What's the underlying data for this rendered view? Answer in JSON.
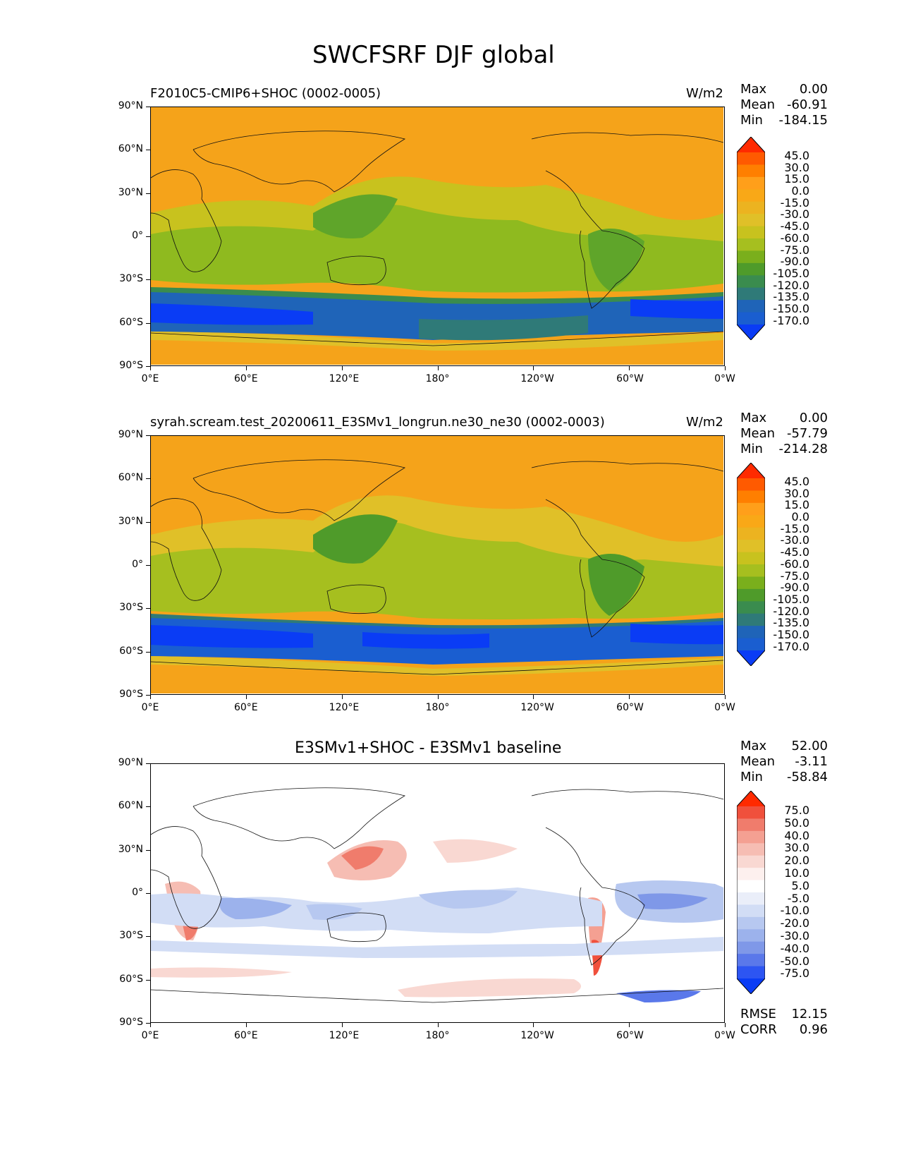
{
  "figure": {
    "title": "SWCFSRF DJF global"
  },
  "axes": {
    "x_ticks": [
      "0°E",
      "60°E",
      "120°E",
      "180°",
      "120°W",
      "60°W",
      "0°W"
    ],
    "y_ticks": [
      "90°N",
      "60°N",
      "30°N",
      "0°",
      "30°S",
      "60°S",
      "90°S"
    ]
  },
  "panels": [
    {
      "title_left": "F2010C5-CMIP6+SHOC (0002-0005)",
      "units": "W/m2",
      "stats": {
        "max_label": "Max",
        "max": "0.00",
        "mean_label": "Mean",
        "mean": "-60.91",
        "min_label": "Min",
        "min": "-184.15"
      },
      "colorbar_labels": [
        "45.0",
        "30.0",
        "15.0",
        "0.0",
        "-15.0",
        "-30.0",
        "-45.0",
        "-60.0",
        "-75.0",
        "-90.0",
        "-105.0",
        "-120.0",
        "-135.0",
        "-150.0",
        "-170.0"
      ]
    },
    {
      "title_left": "syrah.scream.test_20200611_E3SMv1_longrun.ne30_ne30 (0002-0003)",
      "units": "W/m2",
      "stats": {
        "max_label": "Max",
        "max": "0.00",
        "mean_label": "Mean",
        "mean": "-57.79",
        "min_label": "Min",
        "min": "-214.28"
      },
      "colorbar_labels": [
        "45.0",
        "30.0",
        "15.0",
        "0.0",
        "-15.0",
        "-30.0",
        "-45.0",
        "-60.0",
        "-75.0",
        "-90.0",
        "-105.0",
        "-120.0",
        "-135.0",
        "-150.0",
        "-170.0"
      ]
    },
    {
      "title_center": "E3SMv1+SHOC - E3SMv1 baseline",
      "stats": {
        "max_label": "Max",
        "max": "52.00",
        "mean_label": "Mean",
        "mean": "-3.11",
        "min_label": "Min",
        "min": "-58.84"
      },
      "colorbar_labels": [
        "75.0",
        "50.0",
        "40.0",
        "30.0",
        "20.0",
        "10.0",
        "5.0",
        "-5.0",
        "-10.0",
        "-20.0",
        "-30.0",
        "-40.0",
        "-50.0",
        "-75.0"
      ],
      "footer": {
        "rmse_label": "RMSE",
        "rmse": "12.15",
        "corr_label": "CORR",
        "corr": "0.96"
      }
    }
  ],
  "colors": {
    "field_scale": [
      "#ff2a00",
      "#ff5a00",
      "#ff7f00",
      "#ff9f1a",
      "#f9a817",
      "#ecb320",
      "#e0c028",
      "#c8c21e",
      "#a6bf1f",
      "#7aaf1c",
      "#4f9b2a",
      "#3a8c4e",
      "#2f7a78",
      "#1f64b8",
      "#1a5ed0",
      "#0a3cf5"
    ],
    "diff_scale": [
      "#ff2a00",
      "#f0503c",
      "#f07c6c",
      "#f4a092",
      "#f6bdb3",
      "#f9d8d2",
      "#fdf0ee",
      "#ffffff",
      "#eaeef9",
      "#d2ddf5",
      "#b7c8f0",
      "#9cb2ec",
      "#7f98e8",
      "#5a78ea",
      "#2d55f2",
      "#0a3cf5"
    ],
    "background_field": "#f5a31a",
    "background_diff": "#ffffff"
  }
}
